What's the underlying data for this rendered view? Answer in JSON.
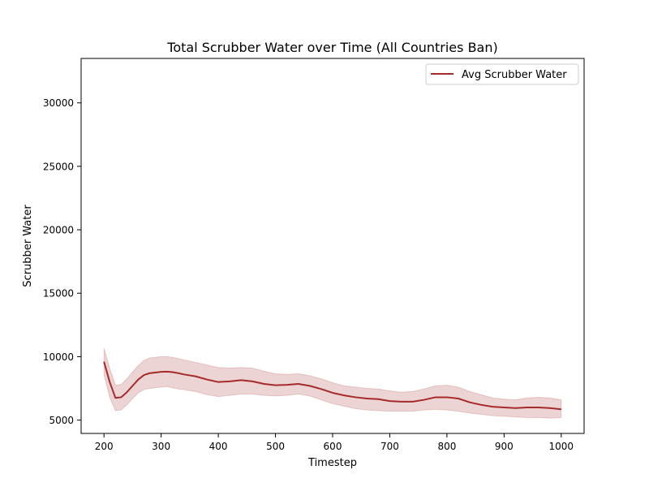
{
  "chart_data": {
    "type": "line",
    "title": "Total Scrubber Water over Time (All Countries Ban)",
    "xlabel": "Timestep",
    "ylabel": "Scrubber Water",
    "xlim": [
      160,
      1040
    ],
    "ylim": [
      3950,
      33500
    ],
    "xticks": [
      200,
      300,
      400,
      500,
      600,
      700,
      800,
      900,
      1000
    ],
    "yticks": [
      5000,
      10000,
      15000,
      20000,
      25000,
      30000
    ],
    "grid": false,
    "legend_position": "top-right",
    "series": [
      {
        "name": "Avg Scrubber Water",
        "color": "#a52a2a",
        "band_color": "#a52a2a",
        "band_opacity": 0.2,
        "x": [
          200,
          210,
          220,
          230,
          240,
          250,
          260,
          270,
          280,
          290,
          300,
          310,
          320,
          330,
          340,
          360,
          380,
          400,
          420,
          440,
          460,
          480,
          500,
          520,
          540,
          560,
          580,
          600,
          620,
          640,
          660,
          680,
          700,
          720,
          740,
          760,
          780,
          800,
          820,
          840,
          860,
          880,
          900,
          920,
          940,
          960,
          980,
          1000
        ],
        "values": [
          9600,
          8000,
          6750,
          6800,
          7200,
          7700,
          8200,
          8550,
          8700,
          8750,
          8800,
          8820,
          8780,
          8700,
          8600,
          8450,
          8200,
          8000,
          8050,
          8150,
          8050,
          7850,
          7750,
          7780,
          7850,
          7700,
          7450,
          7150,
          6950,
          6800,
          6700,
          6650,
          6500,
          6450,
          6450,
          6600,
          6800,
          6800,
          6700,
          6400,
          6200,
          6050,
          6000,
          5950,
          6000,
          6000,
          5950,
          5850
        ],
        "lower": [
          8600,
          6800,
          5750,
          5800,
          6200,
          6700,
          7150,
          7400,
          7500,
          7550,
          7600,
          7650,
          7550,
          7450,
          7400,
          7250,
          7000,
          6850,
          6950,
          7050,
          7050,
          6950,
          6900,
          6950,
          7050,
          6900,
          6600,
          6300,
          6100,
          5900,
          5800,
          5750,
          5700,
          5700,
          5700,
          5800,
          5850,
          5800,
          5700,
          5550,
          5450,
          5350,
          5300,
          5250,
          5200,
          5200,
          5150,
          5200
        ],
        "upper": [
          10650,
          9100,
          7750,
          7800,
          8250,
          8800,
          9300,
          9700,
          9900,
          9950,
          10000,
          10000,
          9950,
          9850,
          9750,
          9550,
          9350,
          9150,
          9100,
          9150,
          9100,
          8850,
          8650,
          8600,
          8650,
          8500,
          8250,
          7950,
          7700,
          7600,
          7500,
          7450,
          7300,
          7200,
          7250,
          7450,
          7700,
          7750,
          7600,
          7250,
          7000,
          6750,
          6650,
          6600,
          6750,
          6800,
          6750,
          6600
        ]
      }
    ]
  }
}
